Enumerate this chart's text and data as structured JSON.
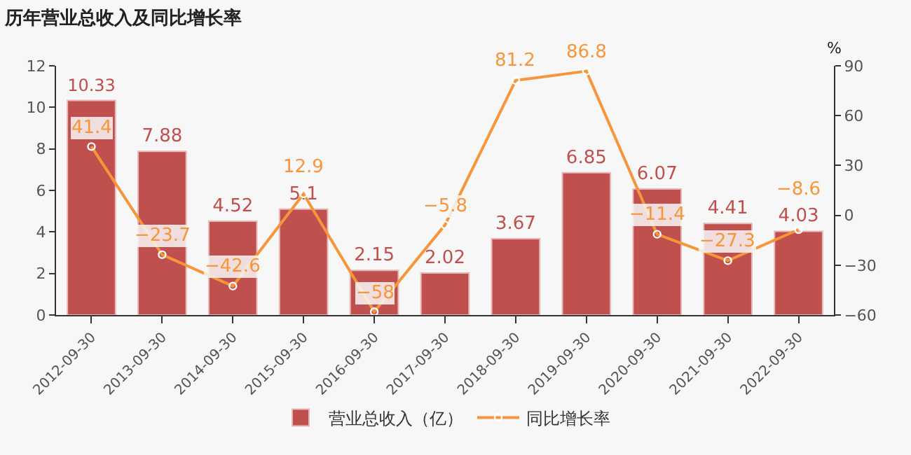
{
  "chart_data": {
    "type": "bar",
    "title": "历年营业总收入及同比增长率",
    "categories": [
      "2012-09-30",
      "2013-09-30",
      "2014-09-30",
      "2015-09-30",
      "2016-09-30",
      "2017-09-30",
      "2018-09-30",
      "2019-09-30",
      "2020-09-30",
      "2021-09-30",
      "2022-09-30"
    ],
    "series": [
      {
        "name": "营业总收入（亿）",
        "color": "#c0504d",
        "values": [
          10.33,
          7.88,
          4.52,
          5.1,
          2.15,
          2.02,
          3.67,
          6.85,
          6.07,
          4.41,
          4.03
        ]
      },
      {
        "name": "同比增长率",
        "type": "line",
        "axis": "y2",
        "color": "#f7953a",
        "marker": "circle",
        "values": [
          41.4,
          -23.7,
          -42.6,
          12.9,
          -58,
          -5.8,
          81.2,
          86.8,
          -11.4,
          -27.3,
          -8.6
        ]
      }
    ],
    "y2label": "%",
    "ylim": [
      0,
      12
    ],
    "yticks": [
      0,
      2,
      4,
      6,
      8,
      10,
      12
    ],
    "y2lim": [
      -60,
      90
    ],
    "y2ticks": [
      -60,
      -30,
      0,
      30,
      60,
      90
    ],
    "data_labels": true,
    "grid": false,
    "legend": "bottom"
  }
}
